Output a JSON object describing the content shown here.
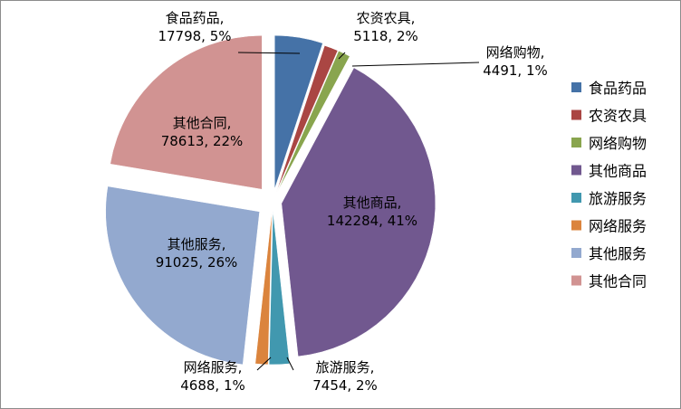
{
  "chart_data": {
    "type": "pie",
    "title": "",
    "legend_position": "right",
    "slices": [
      {
        "name": "食品药品",
        "value": 17798,
        "percent": "5%",
        "label_line1": "食品药品,",
        "label_line2": "17798, 5%",
        "color": "#4572A7"
      },
      {
        "name": "农资农具",
        "value": 5118,
        "percent": "2%",
        "label_line1": "农资农具,",
        "label_line2": "5118, 2%",
        "color": "#AA4643"
      },
      {
        "name": "网络购物",
        "value": 4491,
        "percent": "1%",
        "label_line1": "网络购物,",
        "label_line2": "4491, 1%",
        "color": "#89A54E"
      },
      {
        "name": "其他商品",
        "value": 142284,
        "percent": "41%",
        "label_line1": "其他商品,",
        "label_line2": "142284, 41%",
        "color": "#71588F"
      },
      {
        "name": "旅游服务",
        "value": 7454,
        "percent": "2%",
        "label_line1": "旅游服务,",
        "label_line2": "7454, 2%",
        "color": "#4198AF"
      },
      {
        "name": "网络服务",
        "value": 4688,
        "percent": "1%",
        "label_line1": "网络服务,",
        "label_line2": "4688, 1%",
        "color": "#DB843D"
      },
      {
        "name": "其他服务",
        "value": 91025,
        "percent": "26%",
        "label_line1": "其他服务,",
        "label_line2": "91025, 26%",
        "color": "#93A9CF"
      },
      {
        "name": "其他合同",
        "value": 78613,
        "percent": "22%",
        "label_line1": "其他合同,",
        "label_line2": "78613, 22%",
        "color": "#D19392"
      }
    ]
  }
}
